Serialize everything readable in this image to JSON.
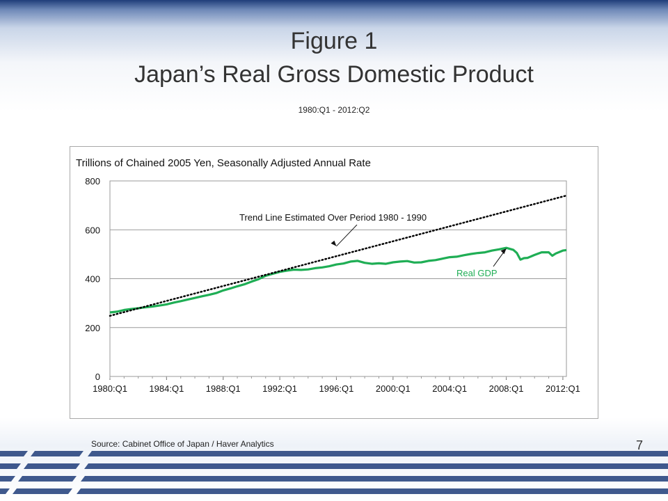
{
  "slide": {
    "title_line1": "Figure 1",
    "title_line2": "Japan’s Real Gross Domestic Product",
    "subtitle": "1980:Q1 - 2012:Q2",
    "source": "Source:  Cabinet Office of Japan / Haver Analytics",
    "page_number": "7"
  },
  "colors": {
    "gdp_line": "#1fae55",
    "trend_line": "#000000",
    "grid": "#9a9a9a",
    "header_band": "#1f3d7a",
    "stripe": "#1f3d7a"
  },
  "chart_data": {
    "type": "line",
    "title": "",
    "ylabel": "Trillions of Chained 2005 Yen, Seasonally Adjusted Annual Rate",
    "ylim": [
      0,
      800
    ],
    "yticks": [
      0,
      200,
      400,
      600,
      800
    ],
    "x_range": [
      1980.0,
      2012.25
    ],
    "xticks": [
      {
        "value": 1980,
        "label": "1980:Q1"
      },
      {
        "value": 1984,
        "label": "1984:Q1"
      },
      {
        "value": 1988,
        "label": "1988:Q1"
      },
      {
        "value": 1992,
        "label": "1992:Q1"
      },
      {
        "value": 1996,
        "label": "1996:Q1"
      },
      {
        "value": 2000,
        "label": "2000:Q1"
      },
      {
        "value": 2004,
        "label": "2004:Q1"
      },
      {
        "value": 2008,
        "label": "2008:Q1"
      },
      {
        "value": 2012,
        "label": "2012:Q1"
      }
    ],
    "grid": "horizontal",
    "series": [
      {
        "name": "Real GDP",
        "style": "solid",
        "points": [
          [
            1980.0,
            262
          ],
          [
            1980.5,
            265
          ],
          [
            1981.0,
            272
          ],
          [
            1981.5,
            276
          ],
          [
            1982.0,
            279
          ],
          [
            1982.5,
            283
          ],
          [
            1983.0,
            286
          ],
          [
            1983.5,
            290
          ],
          [
            1984.0,
            295
          ],
          [
            1984.5,
            302
          ],
          [
            1985.0,
            308
          ],
          [
            1985.5,
            315
          ],
          [
            1986.0,
            321
          ],
          [
            1986.5,
            328
          ],
          [
            1987.0,
            334
          ],
          [
            1987.5,
            341
          ],
          [
            1988.0,
            352
          ],
          [
            1988.5,
            360
          ],
          [
            1989.0,
            369
          ],
          [
            1989.5,
            377
          ],
          [
            1990.0,
            388
          ],
          [
            1990.5,
            398
          ],
          [
            1991.0,
            412
          ],
          [
            1991.5,
            420
          ],
          [
            1992.0,
            428
          ],
          [
            1992.5,
            433
          ],
          [
            1993.0,
            437
          ],
          [
            1993.5,
            436
          ],
          [
            1994.0,
            438
          ],
          [
            1994.5,
            443
          ],
          [
            1995.0,
            446
          ],
          [
            1995.5,
            451
          ],
          [
            1996.0,
            458
          ],
          [
            1996.5,
            462
          ],
          [
            1997.0,
            470
          ],
          [
            1997.5,
            473
          ],
          [
            1998.0,
            465
          ],
          [
            1998.5,
            461
          ],
          [
            1999.0,
            463
          ],
          [
            1999.5,
            461
          ],
          [
            2000.0,
            467
          ],
          [
            2000.5,
            470
          ],
          [
            2001.0,
            472
          ],
          [
            2001.5,
            466
          ],
          [
            2002.0,
            467
          ],
          [
            2002.5,
            473
          ],
          [
            2003.0,
            476
          ],
          [
            2003.5,
            482
          ],
          [
            2004.0,
            488
          ],
          [
            2004.5,
            490
          ],
          [
            2005.0,
            496
          ],
          [
            2005.5,
            501
          ],
          [
            2006.0,
            505
          ],
          [
            2006.5,
            508
          ],
          [
            2007.0,
            515
          ],
          [
            2007.5,
            520
          ],
          [
            2008.0,
            526
          ],
          [
            2008.5,
            518
          ],
          [
            2008.75,
            505
          ],
          [
            2009.0,
            478
          ],
          [
            2009.25,
            484
          ],
          [
            2009.5,
            485
          ],
          [
            2010.0,
            497
          ],
          [
            2010.5,
            508
          ],
          [
            2011.0,
            508
          ],
          [
            2011.25,
            494
          ],
          [
            2011.5,
            503
          ],
          [
            2012.0,
            515
          ],
          [
            2012.25,
            517
          ]
        ]
      },
      {
        "name": "Trend Line Estimated Over Period 1980 - 1990",
        "style": "dotted",
        "points": [
          [
            1980.0,
            248
          ],
          [
            2012.25,
            740
          ]
        ]
      }
    ],
    "annotations": [
      {
        "text": "Trend Line Estimated Over Period 1980 - 1990",
        "target_series": 1,
        "arrow_to": [
          1996.0,
          533
        ]
      },
      {
        "text": "Real GDP",
        "target_series": 0,
        "arrow_to": [
          2008.0,
          523
        ]
      }
    ]
  }
}
